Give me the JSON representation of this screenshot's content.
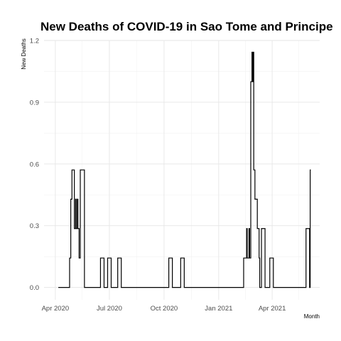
{
  "chart_data": {
    "type": "line",
    "title": "New Deaths of COVID-19 in Sao Tome and Principe",
    "xlabel": "Month",
    "ylabel": "New Deaths",
    "xlim": [
      "2020-03-13",
      "2021-06-20"
    ],
    "ylim": [
      -0.06,
      1.2
    ],
    "x_ticks": [
      {
        "date": "2020-04-01",
        "label": "Apr 2020"
      },
      {
        "date": "2020-07-01",
        "label": "Jul 2020"
      },
      {
        "date": "2020-10-01",
        "label": "Oct 2020"
      },
      {
        "date": "2021-01-01",
        "label": "Jan 2021"
      },
      {
        "date": "2021-04-01",
        "label": "Apr 2021"
      }
    ],
    "y_ticks": [
      {
        "value": 0.0,
        "label": "0.0"
      },
      {
        "value": 0.3,
        "label": "0.3"
      },
      {
        "value": 0.6,
        "label": "0.6"
      },
      {
        "value": 0.9,
        "label": "0.9"
      },
      {
        "value": 1.2,
        "label": "1.2"
      }
    ],
    "grid": true,
    "step": true,
    "series": [
      {
        "points": [
          [
            "2020-04-06",
            0
          ],
          [
            "2020-04-25",
            0
          ],
          [
            "2020-04-25",
            0.143
          ],
          [
            "2020-04-27",
            0.143
          ],
          [
            "2020-04-27",
            0.429
          ],
          [
            "2020-04-29",
            0.429
          ],
          [
            "2020-04-29",
            0.571
          ],
          [
            "2020-05-03",
            0.571
          ],
          [
            "2020-05-03",
            0.286
          ],
          [
            "2020-05-05",
            0.286
          ],
          [
            "2020-05-05",
            0.429
          ],
          [
            "2020-05-06",
            0.429
          ],
          [
            "2020-05-06",
            0.286
          ],
          [
            "2020-05-08",
            0.286
          ],
          [
            "2020-05-08",
            0.429
          ],
          [
            "2020-05-09",
            0.429
          ],
          [
            "2020-05-09",
            0.286
          ],
          [
            "2020-05-11",
            0.286
          ],
          [
            "2020-05-11",
            0.143
          ],
          [
            "2020-05-13",
            0.143
          ],
          [
            "2020-05-13",
            0.571
          ],
          [
            "2020-05-20",
            0.571
          ],
          [
            "2020-05-20",
            0
          ],
          [
            "2020-06-16",
            0
          ],
          [
            "2020-06-16",
            0.143
          ],
          [
            "2020-06-22",
            0.143
          ],
          [
            "2020-06-22",
            0
          ],
          [
            "2020-06-28",
            0
          ],
          [
            "2020-06-28",
            0.143
          ],
          [
            "2020-07-04",
            0.143
          ],
          [
            "2020-07-04",
            0
          ],
          [
            "2020-07-15",
            0
          ],
          [
            "2020-07-15",
            0.143
          ],
          [
            "2020-07-21",
            0.143
          ],
          [
            "2020-07-21",
            0
          ],
          [
            "2020-10-09",
            0
          ],
          [
            "2020-10-09",
            0.143
          ],
          [
            "2020-10-15",
            0.143
          ],
          [
            "2020-10-15",
            0
          ],
          [
            "2020-10-29",
            0
          ],
          [
            "2020-10-29",
            0.143
          ],
          [
            "2020-11-04",
            0.143
          ],
          [
            "2020-11-04",
            0
          ],
          [
            "2021-02-12",
            0
          ],
          [
            "2021-02-12",
            0.143
          ],
          [
            "2021-02-17",
            0.143
          ],
          [
            "2021-02-17",
            0.286
          ],
          [
            "2021-02-18",
            0.286
          ],
          [
            "2021-02-18",
            0.143
          ],
          [
            "2021-02-21",
            0.143
          ],
          [
            "2021-02-21",
            0.286
          ],
          [
            "2021-02-22",
            0.286
          ],
          [
            "2021-02-22",
            0.143
          ],
          [
            "2021-02-24",
            0.143
          ],
          [
            "2021-02-24",
            1.0
          ],
          [
            "2021-02-26",
            1.0
          ],
          [
            "2021-02-26",
            1.143
          ],
          [
            "2021-02-27",
            1.143
          ],
          [
            "2021-02-27",
            1.0
          ],
          [
            "2021-02-28",
            1.0
          ],
          [
            "2021-02-28",
            1.143
          ],
          [
            "2021-03-01",
            1.143
          ],
          [
            "2021-03-01",
            0.571
          ],
          [
            "2021-03-03",
            0.571
          ],
          [
            "2021-03-03",
            0.429
          ],
          [
            "2021-03-07",
            0.429
          ],
          [
            "2021-03-07",
            0.286
          ],
          [
            "2021-03-10",
            0.286
          ],
          [
            "2021-03-10",
            0.143
          ],
          [
            "2021-03-11",
            0.143
          ],
          [
            "2021-03-11",
            0
          ],
          [
            "2021-03-14",
            0
          ],
          [
            "2021-03-14",
            0.286
          ],
          [
            "2021-03-20",
            0.286
          ],
          [
            "2021-03-20",
            0
          ],
          [
            "2021-03-28",
            0
          ],
          [
            "2021-03-28",
            0.143
          ],
          [
            "2021-04-03",
            0.143
          ],
          [
            "2021-04-03",
            0
          ],
          [
            "2021-05-28",
            0
          ],
          [
            "2021-05-28",
            0.286
          ],
          [
            "2021-06-03",
            0.286
          ],
          [
            "2021-06-03",
            0
          ],
          [
            "2021-06-04",
            0
          ],
          [
            "2021-06-04",
            0.571
          ],
          [
            "2021-06-05",
            0.571
          ]
        ]
      }
    ]
  }
}
